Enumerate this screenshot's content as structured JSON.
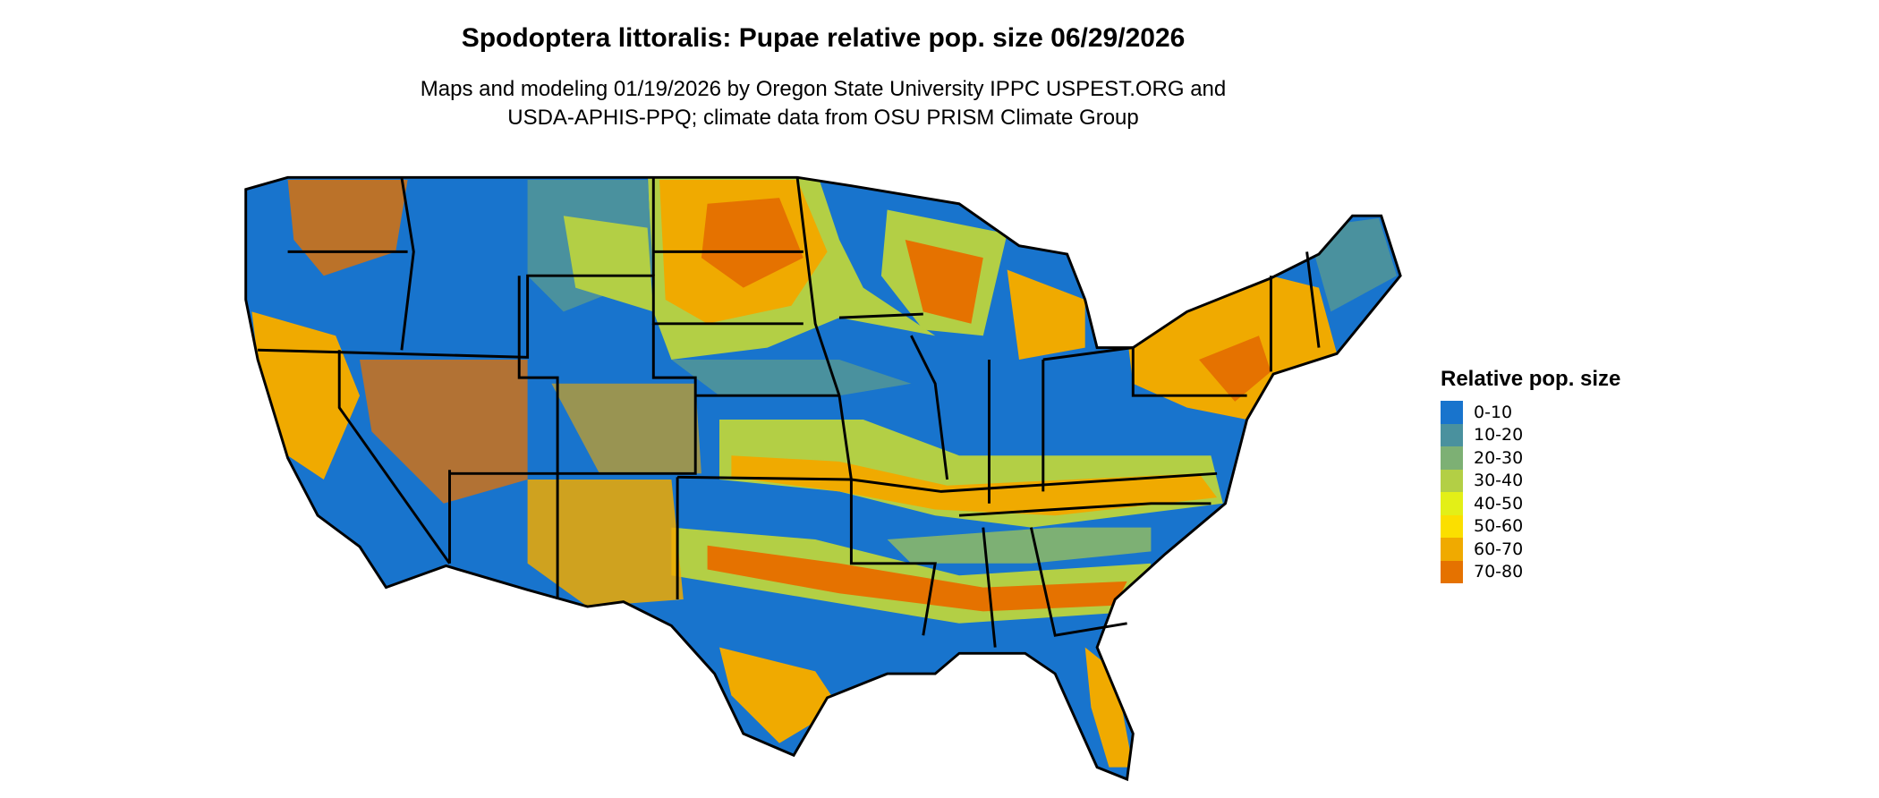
{
  "title": "Spodoptera littoralis: Pupae relative pop. size 06/29/2026",
  "subtitle_line1": "Maps and modeling 01/19/2026 by Oregon State University IPPC USPEST.ORG and",
  "subtitle_line2": "USDA-APHIS-PPQ; climate data from OSU PRISM Climate Group",
  "legend": {
    "title": "Relative pop. size",
    "items": [
      {
        "label": "0-10",
        "color": "#1874cd"
      },
      {
        "label": "10-20",
        "color": "#4a919e"
      },
      {
        "label": "20-30",
        "color": "#7db074"
      },
      {
        "label": "30-40",
        "color": "#b3cf45"
      },
      {
        "label": "40-50",
        "color": "#e3ef17"
      },
      {
        "label": "50-60",
        "color": "#fbdf00"
      },
      {
        "label": "60-70",
        "color": "#f0aa00"
      },
      {
        "label": "70-80",
        "color": "#e57200"
      }
    ]
  }
}
